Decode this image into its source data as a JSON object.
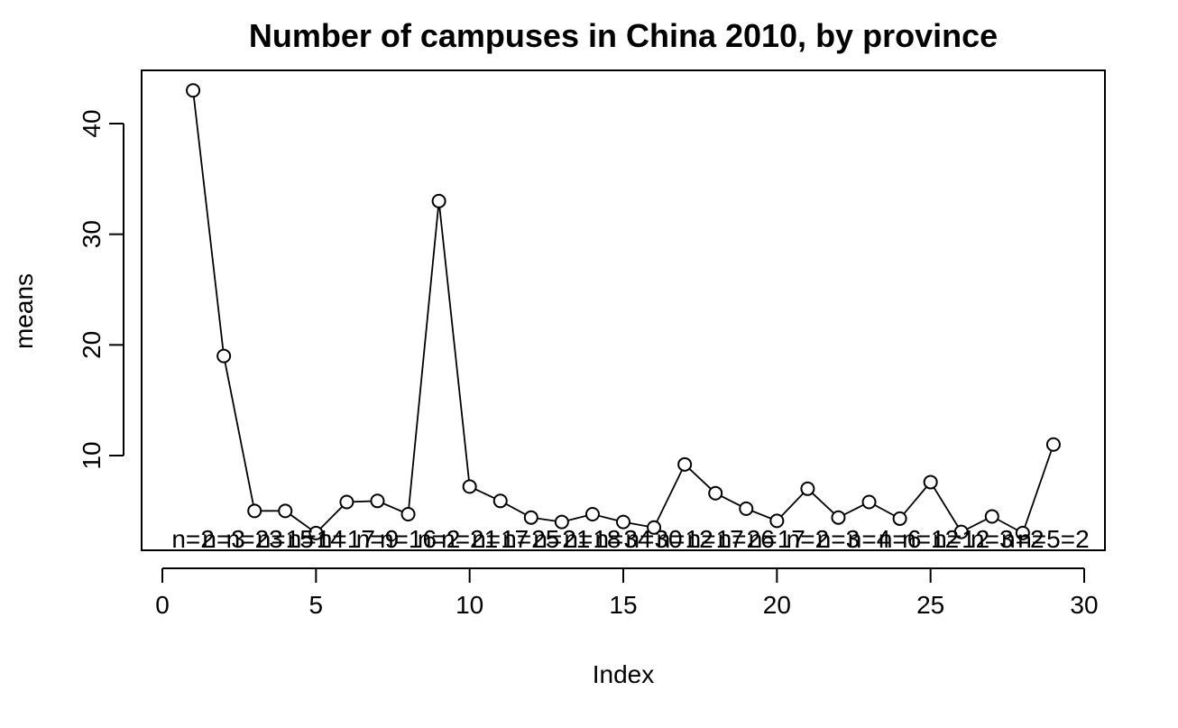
{
  "chart_data": {
    "type": "line",
    "title": "Number of campuses in China 2010, by province",
    "xlabel": "Index",
    "ylabel": "means",
    "xlim": [
      0,
      30
    ],
    "ylim": [
      1.5,
      44.0
    ],
    "x_ticks": [
      0,
      5,
      10,
      15,
      20,
      25,
      30
    ],
    "y_ticks": [
      10,
      20,
      30,
      40
    ],
    "grid": false,
    "legend": "none",
    "series": [
      {
        "x": [
          1,
          2,
          3,
          4,
          5,
          6,
          7,
          8,
          9,
          10,
          11,
          12,
          13,
          14,
          15,
          16,
          17,
          18,
          19,
          20,
          21,
          22,
          23,
          24,
          25,
          26,
          27,
          28,
          29
        ],
        "values": [
          43,
          19,
          5,
          5,
          3,
          5.8,
          5.9,
          4.7,
          33,
          7.2,
          5.9,
          4.4,
          4,
          4.7,
          4,
          3.5,
          9.2,
          6.6,
          5.2,
          4.1,
          7,
          4.4,
          5.8,
          4.3,
          7.6,
          3.1,
          4.5,
          3,
          11
        ]
      }
    ],
    "annotations": [
      "n=2",
      "n=3",
      "n=23",
      "n=15",
      "n=14",
      "n=17",
      "n=9",
      "n=16",
      "n=2",
      "n=21",
      "n=17",
      "n=25",
      "n=21",
      "n=18",
      "n=34",
      "n=30",
      "n=12",
      "n=17",
      "n=26",
      "n=17",
      "n=2",
      "n=3",
      "n=4",
      "n=6",
      "n=12",
      "n=12",
      "n=3",
      "n=2",
      "n=5=2"
    ],
    "annotation_y": 2.5,
    "colors": {
      "line": "#000000",
      "axis": "#000000",
      "background": "#ffffff"
    }
  }
}
